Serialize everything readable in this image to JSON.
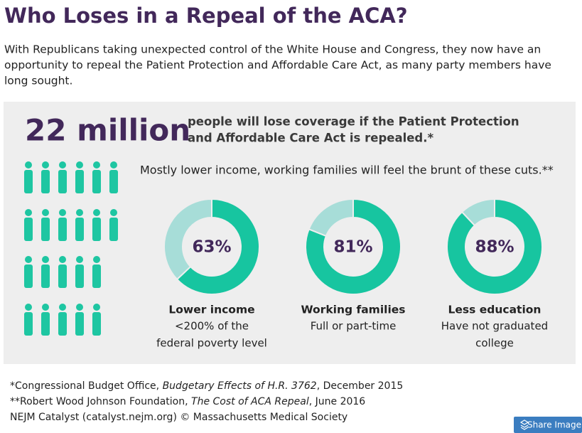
{
  "header": {
    "title": "Who Loses in a Repeal of the ACA?",
    "intro": [
      "With Republicans taking unexpected control of the White House and Congress, they now have an",
      "opportunity to repeal the Patient Protection and Affordable Care Act, as many party members have",
      "long sought."
    ]
  },
  "headline": {
    "figure": "22 million",
    "text": [
      "people will lose coverage if the Patient Protection",
      "and Affordable Care Act is repealed.*"
    ]
  },
  "subhead": "Mostly lower income, working families will feel the brunt of these cuts.**",
  "chart_data": [
    {
      "type": "pie",
      "values": [
        63,
        37
      ],
      "colors": [
        "#17c5a0",
        "#a7ddd8"
      ],
      "label": "63%",
      "title": "Lower income",
      "subtitle": [
        "<200% of the",
        "federal poverty level"
      ]
    },
    {
      "type": "pie",
      "values": [
        81,
        19
      ],
      "colors": [
        "#17c5a0",
        "#a7ddd8"
      ],
      "label": "81%",
      "title": "Working families",
      "subtitle": [
        "Full or part-time"
      ]
    },
    {
      "type": "pie",
      "values": [
        88,
        12
      ],
      "colors": [
        "#17c5a0",
        "#a7ddd8"
      ],
      "label": "88%",
      "title": "Less education",
      "subtitle": [
        "Have not graduated",
        "college"
      ]
    }
  ],
  "footnotes": [
    [
      "*Congressional Budget Office, ",
      "Budgetary Effects of H.R. 3762",
      ", December 2015"
    ],
    [
      "**Robert Wood Johnson Foundation, ",
      "The Cost of ACA Repeal",
      ",  June 2016"
    ],
    [
      "NEJM Catalyst (catalyst.nejm.org) © Massachusetts Medical Society"
    ]
  ],
  "button": "Share Image"
}
